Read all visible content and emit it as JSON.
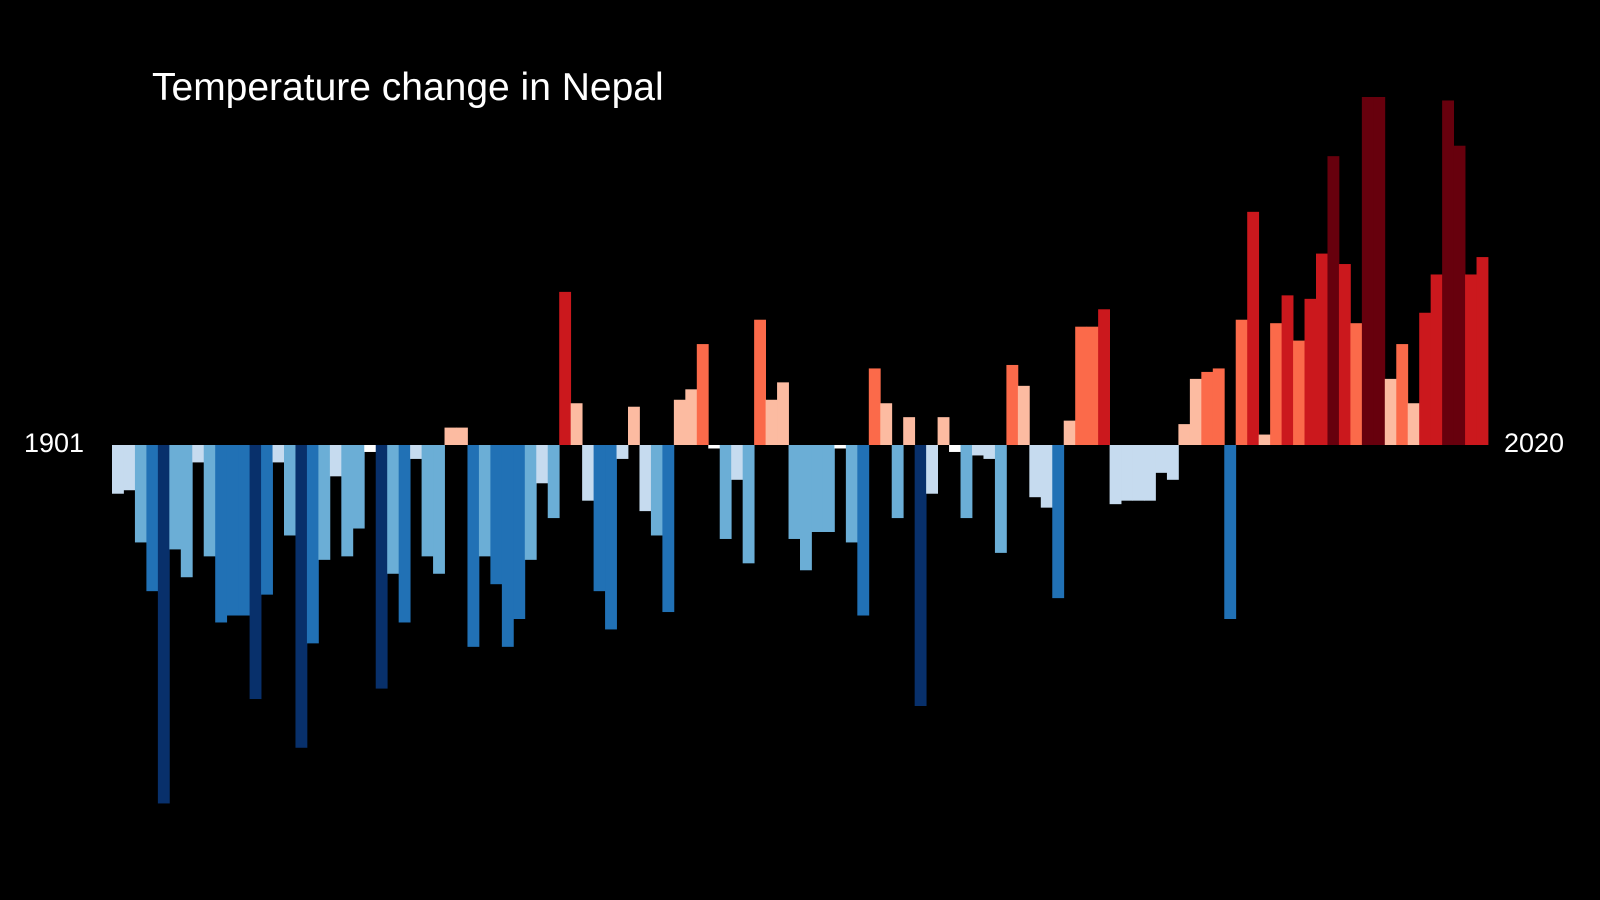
{
  "chart_data": {
    "type": "bar",
    "title": "Temperature change in Nepal",
    "x_start_label": "1901",
    "x_end_label": "2020",
    "x_start": 1901,
    "x_end": 2020,
    "value_unit": "relative anomaly (bar height as fraction of largest warm bar)",
    "ylim": [
      -1.0,
      1.0
    ],
    "grid": false,
    "legend": "none",
    "colors": {
      "cold_extreme": "#08306b",
      "cold": "#2171b5",
      "cool": "#6baed6",
      "cool_light": "#c6dbef",
      "neutral": "#ffffff",
      "warm_light": "#fcbba1",
      "warm": "#fb6a4a",
      "hot": "#cb181d",
      "hot_extreme": "#67000d"
    },
    "values": [
      -0.14,
      -0.13,
      -0.28,
      -0.42,
      -1.03,
      -0.3,
      -0.38,
      -0.05,
      -0.32,
      -0.51,
      -0.49,
      -0.49,
      -0.73,
      -0.43,
      -0.05,
      -0.26,
      -0.87,
      -0.57,
      -0.33,
      -0.09,
      -0.32,
      -0.24,
      -0.02,
      -0.7,
      -0.37,
      -0.51,
      -0.04,
      -0.32,
      -0.37,
      0.05,
      0.05,
      -0.58,
      -0.32,
      -0.4,
      -0.58,
      -0.5,
      -0.33,
      -0.11,
      -0.21,
      0.44,
      0.12,
      -0.16,
      -0.42,
      -0.53,
      -0.04,
      0.11,
      -0.19,
      -0.26,
      -0.48,
      0.13,
      0.16,
      0.29,
      -0.01,
      -0.27,
      -0.1,
      -0.34,
      0.36,
      0.13,
      0.18,
      -0.27,
      -0.36,
      -0.25,
      -0.25,
      -0.01,
      -0.28,
      -0.49,
      0.22,
      0.12,
      -0.21,
      0.08,
      -0.75,
      -0.14,
      0.08,
      -0.02,
      -0.21,
      -0.03,
      -0.04,
      -0.31,
      0.23,
      0.17,
      -0.15,
      -0.18,
      -0.44,
      0.07,
      0.34,
      0.34,
      0.39,
      -0.17,
      -0.16,
      -0.16,
      -0.16,
      -0.08,
      -0.1,
      0.06,
      0.19,
      0.21,
      0.22,
      -0.5,
      0.36,
      0.67,
      0.03,
      0.35,
      0.43,
      0.3,
      0.42,
      0.55,
      0.83,
      0.52,
      0.35,
      1.0,
      1.0,
      0.19,
      0.29,
      0.12,
      0.38,
      0.49,
      0.99,
      0.86,
      0.49,
      0.54
    ]
  }
}
